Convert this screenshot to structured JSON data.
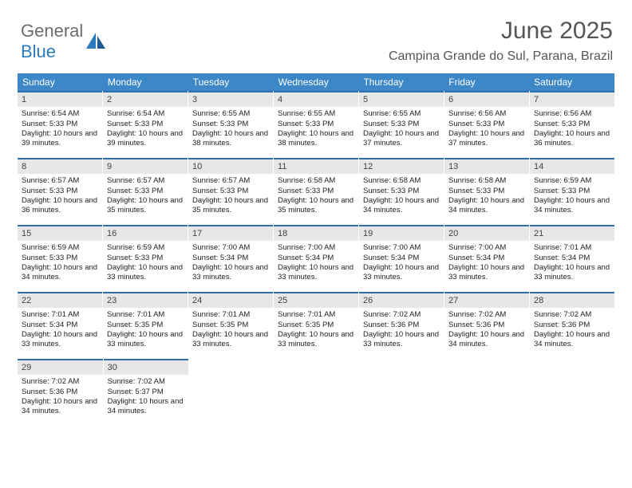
{
  "logo": {
    "part1": "General",
    "part2": "Blue"
  },
  "header": {
    "title": "June 2025",
    "location": "Campina Grande do Sul, Parana, Brazil"
  },
  "colors": {
    "header_bg": "#3c87c7",
    "daynum_bg": "#e7e7e7",
    "daynum_border": "#2f6ea8",
    "logo_gray": "#6d6d6d",
    "logo_blue": "#2a7ac0",
    "text": "#222222"
  },
  "weekdays": [
    "Sunday",
    "Monday",
    "Tuesday",
    "Wednesday",
    "Thursday",
    "Friday",
    "Saturday"
  ],
  "weeks": [
    [
      {
        "n": "1",
        "sr": "6:54 AM",
        "ss": "5:33 PM",
        "dl": "10 hours and 39 minutes."
      },
      {
        "n": "2",
        "sr": "6:54 AM",
        "ss": "5:33 PM",
        "dl": "10 hours and 39 minutes."
      },
      {
        "n": "3",
        "sr": "6:55 AM",
        "ss": "5:33 PM",
        "dl": "10 hours and 38 minutes."
      },
      {
        "n": "4",
        "sr": "6:55 AM",
        "ss": "5:33 PM",
        "dl": "10 hours and 38 minutes."
      },
      {
        "n": "5",
        "sr": "6:55 AM",
        "ss": "5:33 PM",
        "dl": "10 hours and 37 minutes."
      },
      {
        "n": "6",
        "sr": "6:56 AM",
        "ss": "5:33 PM",
        "dl": "10 hours and 37 minutes."
      },
      {
        "n": "7",
        "sr": "6:56 AM",
        "ss": "5:33 PM",
        "dl": "10 hours and 36 minutes."
      }
    ],
    [
      {
        "n": "8",
        "sr": "6:57 AM",
        "ss": "5:33 PM",
        "dl": "10 hours and 36 minutes."
      },
      {
        "n": "9",
        "sr": "6:57 AM",
        "ss": "5:33 PM",
        "dl": "10 hours and 35 minutes."
      },
      {
        "n": "10",
        "sr": "6:57 AM",
        "ss": "5:33 PM",
        "dl": "10 hours and 35 minutes."
      },
      {
        "n": "11",
        "sr": "6:58 AM",
        "ss": "5:33 PM",
        "dl": "10 hours and 35 minutes."
      },
      {
        "n": "12",
        "sr": "6:58 AM",
        "ss": "5:33 PM",
        "dl": "10 hours and 34 minutes."
      },
      {
        "n": "13",
        "sr": "6:58 AM",
        "ss": "5:33 PM",
        "dl": "10 hours and 34 minutes."
      },
      {
        "n": "14",
        "sr": "6:59 AM",
        "ss": "5:33 PM",
        "dl": "10 hours and 34 minutes."
      }
    ],
    [
      {
        "n": "15",
        "sr": "6:59 AM",
        "ss": "5:33 PM",
        "dl": "10 hours and 34 minutes."
      },
      {
        "n": "16",
        "sr": "6:59 AM",
        "ss": "5:33 PM",
        "dl": "10 hours and 33 minutes."
      },
      {
        "n": "17",
        "sr": "7:00 AM",
        "ss": "5:34 PM",
        "dl": "10 hours and 33 minutes."
      },
      {
        "n": "18",
        "sr": "7:00 AM",
        "ss": "5:34 PM",
        "dl": "10 hours and 33 minutes."
      },
      {
        "n": "19",
        "sr": "7:00 AM",
        "ss": "5:34 PM",
        "dl": "10 hours and 33 minutes."
      },
      {
        "n": "20",
        "sr": "7:00 AM",
        "ss": "5:34 PM",
        "dl": "10 hours and 33 minutes."
      },
      {
        "n": "21",
        "sr": "7:01 AM",
        "ss": "5:34 PM",
        "dl": "10 hours and 33 minutes."
      }
    ],
    [
      {
        "n": "22",
        "sr": "7:01 AM",
        "ss": "5:34 PM",
        "dl": "10 hours and 33 minutes."
      },
      {
        "n": "23",
        "sr": "7:01 AM",
        "ss": "5:35 PM",
        "dl": "10 hours and 33 minutes."
      },
      {
        "n": "24",
        "sr": "7:01 AM",
        "ss": "5:35 PM",
        "dl": "10 hours and 33 minutes."
      },
      {
        "n": "25",
        "sr": "7:01 AM",
        "ss": "5:35 PM",
        "dl": "10 hours and 33 minutes."
      },
      {
        "n": "26",
        "sr": "7:02 AM",
        "ss": "5:36 PM",
        "dl": "10 hours and 33 minutes."
      },
      {
        "n": "27",
        "sr": "7:02 AM",
        "ss": "5:36 PM",
        "dl": "10 hours and 34 minutes."
      },
      {
        "n": "28",
        "sr": "7:02 AM",
        "ss": "5:36 PM",
        "dl": "10 hours and 34 minutes."
      }
    ],
    [
      {
        "n": "29",
        "sr": "7:02 AM",
        "ss": "5:36 PM",
        "dl": "10 hours and 34 minutes."
      },
      {
        "n": "30",
        "sr": "7:02 AM",
        "ss": "5:37 PM",
        "dl": "10 hours and 34 minutes."
      },
      null,
      null,
      null,
      null,
      null
    ]
  ],
  "labels": {
    "sunrise": "Sunrise:",
    "sunset": "Sunset:",
    "daylight": "Daylight:"
  }
}
